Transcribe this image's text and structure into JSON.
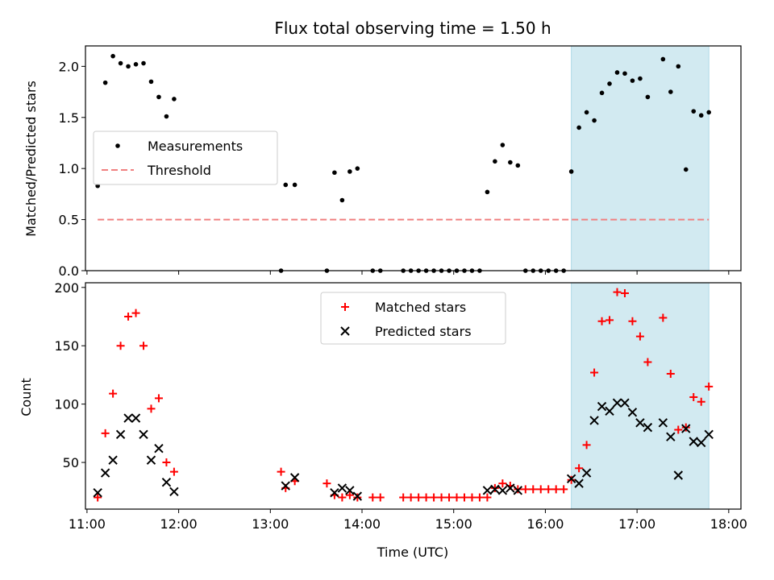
{
  "chart_data": [
    {
      "type": "scatter",
      "title": "Flux total observing time = 1.50 h",
      "xlabel": "",
      "ylabel": "Matched/Predicted stars",
      "xlim": [
        "10:59",
        "18:08"
      ],
      "ylim": [
        0,
        2.2
      ],
      "x_ticks": [
        "11:00",
        "12:00",
        "13:00",
        "14:00",
        "15:00",
        "16:00",
        "17:00",
        "18:00"
      ],
      "y_ticks": [
        "0.0",
        "0.5",
        "1.0",
        "1.5",
        "2.0"
      ],
      "highlight_span": [
        "16:17",
        "17:47"
      ],
      "highlight_color": "#add8e6",
      "legend": {
        "placement": "center-left",
        "entries": [
          "Measurements",
          "Threshold"
        ]
      },
      "series": [
        {
          "name": "Measurements",
          "kind": "scatter",
          "marker": "dot",
          "color": "#000000",
          "points": [
            [
              "11:07",
              0.83
            ],
            [
              "11:12",
              1.84
            ],
            [
              "11:17",
              2.1
            ],
            [
              "11:22",
              2.03
            ],
            [
              "11:27",
              2.0
            ],
            [
              "11:32",
              2.02
            ],
            [
              "11:37",
              2.03
            ],
            [
              "11:42",
              1.85
            ],
            [
              "11:47",
              1.7
            ],
            [
              "11:52",
              1.51
            ],
            [
              "11:57",
              1.68
            ],
            [
              "13:07",
              0.0
            ],
            [
              "13:10",
              0.84
            ],
            [
              "13:16",
              0.84
            ],
            [
              "13:37",
              0.0
            ],
            [
              "13:42",
              0.96
            ],
            [
              "13:47",
              0.69
            ],
            [
              "13:52",
              0.97
            ],
            [
              "13:57",
              1.0
            ],
            [
              "14:07",
              0.0
            ],
            [
              "14:12",
              0.0
            ],
            [
              "14:27",
              0.0
            ],
            [
              "14:32",
              0.0
            ],
            [
              "14:37",
              0.0
            ],
            [
              "14:42",
              0.0
            ],
            [
              "14:47",
              0.0
            ],
            [
              "14:52",
              0.0
            ],
            [
              "14:57",
              0.0
            ],
            [
              "15:02",
              0.0
            ],
            [
              "15:07",
              0.0
            ],
            [
              "15:12",
              0.0
            ],
            [
              "15:17",
              0.0
            ],
            [
              "15:22",
              0.77
            ],
            [
              "15:27",
              1.07
            ],
            [
              "15:32",
              1.23
            ],
            [
              "15:37",
              1.06
            ],
            [
              "15:42",
              1.03
            ],
            [
              "15:47",
              0.0
            ],
            [
              "15:52",
              0.0
            ],
            [
              "15:57",
              0.0
            ],
            [
              "16:02",
              0.0
            ],
            [
              "16:07",
              0.0
            ],
            [
              "16:12",
              0.0
            ],
            [
              "16:17",
              0.97
            ],
            [
              "16:22",
              1.4
            ],
            [
              "16:27",
              1.55
            ],
            [
              "16:32",
              1.47
            ],
            [
              "16:37",
              1.74
            ],
            [
              "16:42",
              1.83
            ],
            [
              "16:47",
              1.94
            ],
            [
              "16:52",
              1.93
            ],
            [
              "16:57",
              1.86
            ],
            [
              "17:02",
              1.88
            ],
            [
              "17:07",
              1.7
            ],
            [
              "17:17",
              2.07
            ],
            [
              "17:22",
              1.75
            ],
            [
              "17:27",
              2.0
            ],
            [
              "17:32",
              0.99
            ],
            [
              "17:37",
              1.56
            ],
            [
              "17:42",
              1.52
            ],
            [
              "17:47",
              1.55
            ]
          ]
        },
        {
          "name": "Threshold",
          "kind": "line",
          "dash": true,
          "color": "#f08080",
          "points": [
            [
              "11:07",
              0.5
            ],
            [
              "17:47",
              0.5
            ]
          ]
        }
      ]
    },
    {
      "type": "scatter",
      "title": "",
      "xlabel": "Time (UTC)",
      "ylabel": "Count",
      "xlim": [
        "10:59",
        "18:08"
      ],
      "ylim": [
        10,
        204
      ],
      "x_ticks": [
        "11:00",
        "12:00",
        "13:00",
        "14:00",
        "15:00",
        "16:00",
        "17:00",
        "18:00"
      ],
      "y_ticks": [
        "50",
        "100",
        "150",
        "200"
      ],
      "highlight_span": [
        "16:17",
        "17:47"
      ],
      "highlight_color": "#add8e6",
      "legend": {
        "placement": "upper-center",
        "entries": [
          "Matched stars",
          "Predicted stars"
        ]
      },
      "series": [
        {
          "name": "Matched stars",
          "kind": "scatter",
          "marker": "plus",
          "color": "#ff0000",
          "points": [
            [
              "11:07",
              20
            ],
            [
              "11:12",
              75
            ],
            [
              "11:17",
              109
            ],
            [
              "11:22",
              150
            ],
            [
              "11:27",
              175
            ],
            [
              "11:32",
              178
            ],
            [
              "11:37",
              150
            ],
            [
              "11:42",
              96
            ],
            [
              "11:47",
              105
            ],
            [
              "11:52",
              50
            ],
            [
              "11:57",
              42
            ],
            [
              "13:07",
              42
            ],
            [
              "13:10",
              28
            ],
            [
              "13:16",
              34
            ],
            [
              "13:37",
              32
            ],
            [
              "13:42",
              22
            ],
            [
              "13:47",
              20
            ],
            [
              "13:52",
              22
            ],
            [
              "13:57",
              20
            ],
            [
              "14:07",
              20
            ],
            [
              "14:12",
              20
            ],
            [
              "14:27",
              20
            ],
            [
              "14:32",
              20
            ],
            [
              "14:37",
              20
            ],
            [
              "14:42",
              20
            ],
            [
              "14:47",
              20
            ],
            [
              "14:52",
              20
            ],
            [
              "14:57",
              20
            ],
            [
              "15:02",
              20
            ],
            [
              "15:07",
              20
            ],
            [
              "15:12",
              20
            ],
            [
              "15:17",
              20
            ],
            [
              "15:22",
              20
            ],
            [
              "15:27",
              28
            ],
            [
              "15:32",
              32
            ],
            [
              "15:37",
              30
            ],
            [
              "15:42",
              27
            ],
            [
              "15:47",
              27
            ],
            [
              "15:52",
              27
            ],
            [
              "15:57",
              27
            ],
            [
              "16:02",
              27
            ],
            [
              "16:07",
              27
            ],
            [
              "16:12",
              27
            ],
            [
              "16:17",
              35
            ],
            [
              "16:22",
              45
            ],
            [
              "16:27",
              65
            ],
            [
              "16:32",
              127
            ],
            [
              "16:37",
              171
            ],
            [
              "16:42",
              172
            ],
            [
              "16:47",
              196
            ],
            [
              "16:52",
              195
            ],
            [
              "16:57",
              171
            ],
            [
              "17:02",
              158
            ],
            [
              "17:07",
              136
            ],
            [
              "17:17",
              174
            ],
            [
              "17:22",
              126
            ],
            [
              "17:27",
              78
            ],
            [
              "17:32",
              80
            ],
            [
              "17:37",
              106
            ],
            [
              "17:42",
              102
            ],
            [
              "17:47",
              115
            ]
          ]
        },
        {
          "name": "Predicted stars",
          "kind": "scatter",
          "marker": "x",
          "color": "#000000",
          "points": [
            [
              "11:07",
              24
            ],
            [
              "11:12",
              41
            ],
            [
              "11:17",
              52
            ],
            [
              "11:22",
              74
            ],
            [
              "11:27",
              88
            ],
            [
              "11:32",
              88
            ],
            [
              "11:37",
              74
            ],
            [
              "11:42",
              52
            ],
            [
              "11:47",
              62
            ],
            [
              "11:52",
              33
            ],
            [
              "11:57",
              25
            ],
            [
              "13:10",
              30
            ],
            [
              "13:16",
              37
            ],
            [
              "13:42",
              24
            ],
            [
              "13:47",
              28
            ],
            [
              "13:52",
              26
            ],
            [
              "13:57",
              21
            ],
            [
              "15:22",
              26
            ],
            [
              "15:27",
              27
            ],
            [
              "15:32",
              26
            ],
            [
              "15:37",
              28
            ],
            [
              "15:42",
              26
            ],
            [
              "16:17",
              36
            ],
            [
              "16:22",
              32
            ],
            [
              "16:27",
              41
            ],
            [
              "16:32",
              86
            ],
            [
              "16:37",
              98
            ],
            [
              "16:42",
              94
            ],
            [
              "16:47",
              101
            ],
            [
              "16:52",
              101
            ],
            [
              "16:57",
              93
            ],
            [
              "17:02",
              84
            ],
            [
              "17:07",
              80
            ],
            [
              "17:17",
              84
            ],
            [
              "17:22",
              72
            ],
            [
              "17:27",
              39
            ],
            [
              "17:32",
              79
            ],
            [
              "17:37",
              68
            ],
            [
              "17:42",
              67
            ],
            [
              "17:47",
              74
            ]
          ]
        }
      ]
    }
  ]
}
